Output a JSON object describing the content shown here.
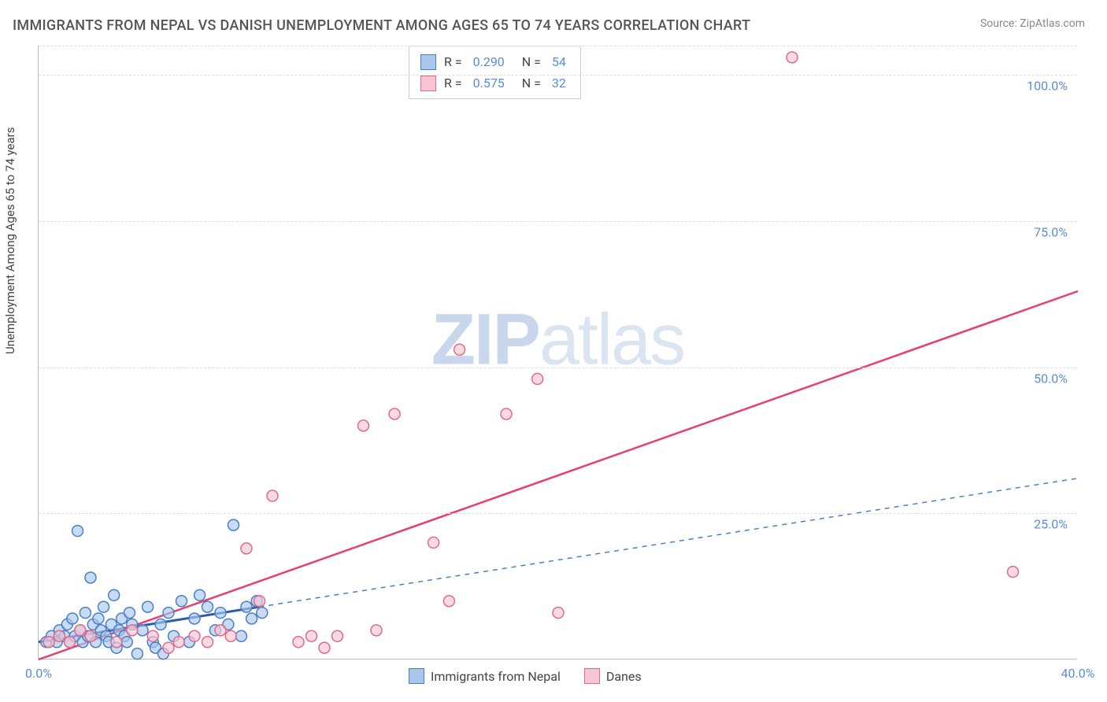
{
  "title": "IMMIGRANTS FROM NEPAL VS DANISH UNEMPLOYMENT AMONG AGES 65 TO 74 YEARS CORRELATION CHART",
  "source_label": "Source: ",
  "source_name": "ZipAtlas.com",
  "ylabel": "Unemployment Among Ages 65 to 74 years",
  "watermark_a": "ZIP",
  "watermark_b": "atlas",
  "chart": {
    "type": "scatter-with-trendlines",
    "background_color": "#ffffff",
    "grid_color": "#dddddd",
    "axis_color": "#bbbbbb",
    "tick_color": "#5b8dd6",
    "title_color": "#555555",
    "title_fontsize": 18,
    "label_fontsize": 15,
    "tick_fontsize": 16,
    "xlim": [
      0,
      40
    ],
    "ylim": [
      0,
      105
    ],
    "x_ticks": [
      0,
      40
    ],
    "x_tick_labels": [
      "0.0%",
      "40.0%"
    ],
    "y_ticks": [
      25,
      50,
      75,
      100
    ],
    "y_tick_labels": [
      "25.0%",
      "50.0%",
      "75.0%",
      "100.0%"
    ],
    "point_radius": 7,
    "point_stroke_width": 1.5,
    "series": [
      {
        "name": "Immigrants from Nepal",
        "color_fill": "#a9c7ec",
        "color_stroke": "#4a7fc7",
        "r_value": "0.290",
        "n_value": "54",
        "trendline": {
          "x1": 0,
          "y1": 3,
          "x2": 8.5,
          "y2": 9,
          "dash": "none",
          "width": 3,
          "color": "#2d5da8"
        },
        "trendline_ext": {
          "x1": 8.5,
          "y1": 9,
          "x2": 40,
          "y2": 31,
          "dash": "6,6",
          "width": 1.5,
          "color": "#4a7fc7"
        },
        "points": [
          [
            0.3,
            3
          ],
          [
            0.5,
            4
          ],
          [
            0.7,
            3
          ],
          [
            0.8,
            5
          ],
          [
            1.0,
            4
          ],
          [
            1.1,
            6
          ],
          [
            1.2,
            3
          ],
          [
            1.3,
            7
          ],
          [
            1.4,
            4
          ],
          [
            1.5,
            22
          ],
          [
            1.6,
            5
          ],
          [
            1.7,
            3
          ],
          [
            1.8,
            8
          ],
          [
            1.9,
            4
          ],
          [
            2.0,
            14
          ],
          [
            2.1,
            6
          ],
          [
            2.2,
            3
          ],
          [
            2.3,
            7
          ],
          [
            2.4,
            5
          ],
          [
            2.5,
            9
          ],
          [
            2.6,
            4
          ],
          [
            2.7,
            3
          ],
          [
            2.8,
            6
          ],
          [
            2.9,
            11
          ],
          [
            3.0,
            2
          ],
          [
            3.1,
            5
          ],
          [
            3.2,
            7
          ],
          [
            3.3,
            4
          ],
          [
            3.4,
            3
          ],
          [
            3.5,
            8
          ],
          [
            3.6,
            6
          ],
          [
            3.8,
            1
          ],
          [
            4.0,
            5
          ],
          [
            4.2,
            9
          ],
          [
            4.4,
            3
          ],
          [
            4.5,
            2
          ],
          [
            4.7,
            6
          ],
          [
            4.8,
            1
          ],
          [
            5.0,
            8
          ],
          [
            5.2,
            4
          ],
          [
            5.5,
            10
          ],
          [
            5.8,
            3
          ],
          [
            6.0,
            7
          ],
          [
            6.2,
            11
          ],
          [
            6.5,
            9
          ],
          [
            6.8,
            5
          ],
          [
            7.0,
            8
          ],
          [
            7.3,
            6
          ],
          [
            7.5,
            23
          ],
          [
            7.8,
            4
          ],
          [
            8.0,
            9
          ],
          [
            8.2,
            7
          ],
          [
            8.4,
            10
          ],
          [
            8.6,
            8
          ]
        ]
      },
      {
        "name": "Danes",
        "color_fill": "#f7c6d2",
        "color_stroke": "#e06a8c",
        "r_value": "0.575",
        "n_value": "32",
        "trendline": {
          "x1": 0,
          "y1": 0,
          "x2": 40,
          "y2": 63,
          "dash": "none",
          "width": 2.5,
          "color": "#e83e70"
        },
        "points": [
          [
            0.4,
            3
          ],
          [
            0.8,
            4
          ],
          [
            1.2,
            3
          ],
          [
            1.6,
            5
          ],
          [
            2.0,
            4
          ],
          [
            3.0,
            3
          ],
          [
            3.6,
            5
          ],
          [
            4.4,
            4
          ],
          [
            5.0,
            2
          ],
          [
            5.4,
            3
          ],
          [
            6.0,
            4
          ],
          [
            6.5,
            3
          ],
          [
            7.0,
            5
          ],
          [
            7.4,
            4
          ],
          [
            8.0,
            19
          ],
          [
            8.5,
            10
          ],
          [
            9.0,
            28
          ],
          [
            10.0,
            3
          ],
          [
            10.5,
            4
          ],
          [
            11.0,
            2
          ],
          [
            11.5,
            4
          ],
          [
            12.5,
            40
          ],
          [
            13.0,
            5
          ],
          [
            13.7,
            42
          ],
          [
            15.2,
            20
          ],
          [
            15.8,
            10
          ],
          [
            16.2,
            53
          ],
          [
            18.0,
            42
          ],
          [
            19.2,
            48
          ],
          [
            20.0,
            8
          ],
          [
            29.0,
            103
          ],
          [
            37.5,
            15
          ]
        ]
      }
    ],
    "legend_bottom": [
      {
        "label": "Immigrants from Nepal",
        "fill": "#a9c7ec",
        "stroke": "#4a7fc7"
      },
      {
        "label": "Danes",
        "fill": "#f7c6d2",
        "stroke": "#e06a8c"
      }
    ]
  }
}
